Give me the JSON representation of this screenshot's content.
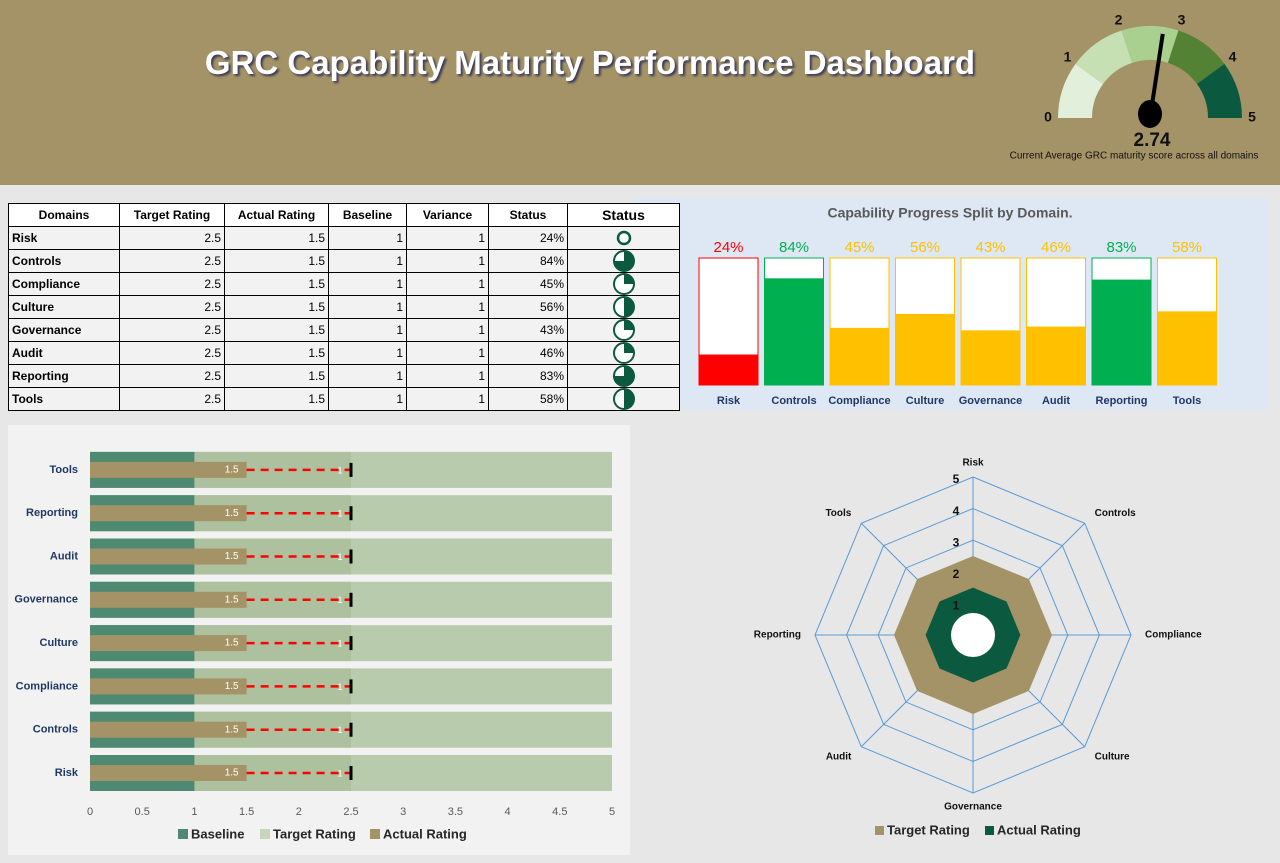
{
  "header": {
    "title": "GRC Capability Maturity Performance Dashboard"
  },
  "table": {
    "columns": [
      "Domains",
      "Target Rating",
      "Actual Rating",
      "Baseline",
      "Variance",
      "Status",
      "Status"
    ],
    "rows": [
      [
        "Risk",
        2.5,
        1.5,
        1,
        1,
        "24%",
        0
      ],
      [
        "Controls",
        2.5,
        1.5,
        1,
        1,
        "84%",
        0.75
      ],
      [
        "Compliance",
        2.5,
        1.5,
        1,
        1,
        "45%",
        0.25
      ],
      [
        "Culture",
        2.5,
        1.5,
        1,
        1,
        "56%",
        0.5
      ],
      [
        "Governance",
        2.5,
        1.5,
        1,
        1,
        "43%",
        0.25
      ],
      [
        "Audit",
        2.5,
        1.5,
        1,
        1,
        "46%",
        0.25
      ],
      [
        "Reporting",
        2.5,
        1.5,
        1,
        1,
        "83%",
        0.75
      ],
      [
        "Tools",
        2.5,
        1.5,
        1,
        1,
        "58%",
        0.5
      ]
    ],
    "icon_color": "#0b5a40"
  },
  "chart_data": [
    {
      "type": "gauge",
      "value": 2.74,
      "caption": "Current Average GRC maturity score across all domains",
      "ylim": [
        0,
        5
      ],
      "yticks": [
        0,
        1,
        2,
        3,
        4,
        5
      ],
      "colors": [
        "#e2efda",
        "#c6e0b4",
        "#a9d08e",
        "#548235",
        "#0b5a40"
      ],
      "needle_color": "#000000"
    },
    {
      "type": "bar",
      "title": "Capability Progress Split by Domain.",
      "categories": [
        "Risk",
        "Controls",
        "Compliance",
        "Culture",
        "Governance",
        "Audit",
        "Reporting",
        "Tools"
      ],
      "values": [
        24,
        84,
        45,
        56,
        43,
        46,
        83,
        58
      ],
      "value_labels": [
        "24%",
        "84%",
        "45%",
        "56%",
        "43%",
        "46%",
        "83%",
        "58%"
      ],
      "colors": [
        "#ff0000",
        "#00b050",
        "#ffc000",
        "#ffc000",
        "#ffc000",
        "#ffc000",
        "#00b050",
        "#ffc000"
      ],
      "ylim": [
        0,
        100
      ]
    },
    {
      "type": "bullet",
      "orientation": "horizontal",
      "categories": [
        "Risk",
        "Controls",
        "Compliance",
        "Culture",
        "Governance",
        "Audit",
        "Reporting",
        "Tools"
      ],
      "series": [
        {
          "name": "Baseline",
          "color": "#4e8a72",
          "values": [
            1,
            1,
            1,
            1,
            1,
            1,
            1,
            1
          ]
        },
        {
          "name": "Target Rating",
          "color": "#adc19f",
          "values": [
            2.5,
            2.5,
            2.5,
            2.5,
            2.5,
            2.5,
            2.5,
            2.5
          ]
        },
        {
          "name": "Actual Rating",
          "color": "#a39366",
          "values": [
            1.5,
            1.5,
            1.5,
            1.5,
            1.5,
            1.5,
            1.5,
            1.5
          ]
        }
      ],
      "variance": {
        "color": "#ff0000",
        "values": [
          1,
          1,
          1,
          1,
          1,
          1,
          1,
          1
        ]
      },
      "xlim": [
        0,
        5
      ],
      "xticks": [
        0,
        0.5,
        1,
        1.5,
        2,
        2.5,
        3,
        3.5,
        4,
        4.5,
        5
      ],
      "legend": "bottom"
    },
    {
      "type": "radar",
      "categories": [
        "Risk",
        "Controls",
        "Compliance",
        "Culture",
        "Governance",
        "Audit",
        "Reporting",
        "Tools"
      ],
      "series": [
        {
          "name": "Target Rating",
          "color": "#a39366",
          "values": [
            2.5,
            2.5,
            2.5,
            2.5,
            2.5,
            2.5,
            2.5,
            2.5
          ]
        },
        {
          "name": "Actual Rating",
          "color": "#0b5a40",
          "values": [
            1.5,
            1.5,
            1.5,
            1.5,
            1.5,
            1.5,
            1.5,
            1.5
          ]
        }
      ],
      "rlim": [
        0,
        5
      ],
      "rticks": [
        1,
        2,
        3,
        4,
        5
      ],
      "grid_color": "#5b9bd5",
      "legend": "bottom"
    }
  ]
}
